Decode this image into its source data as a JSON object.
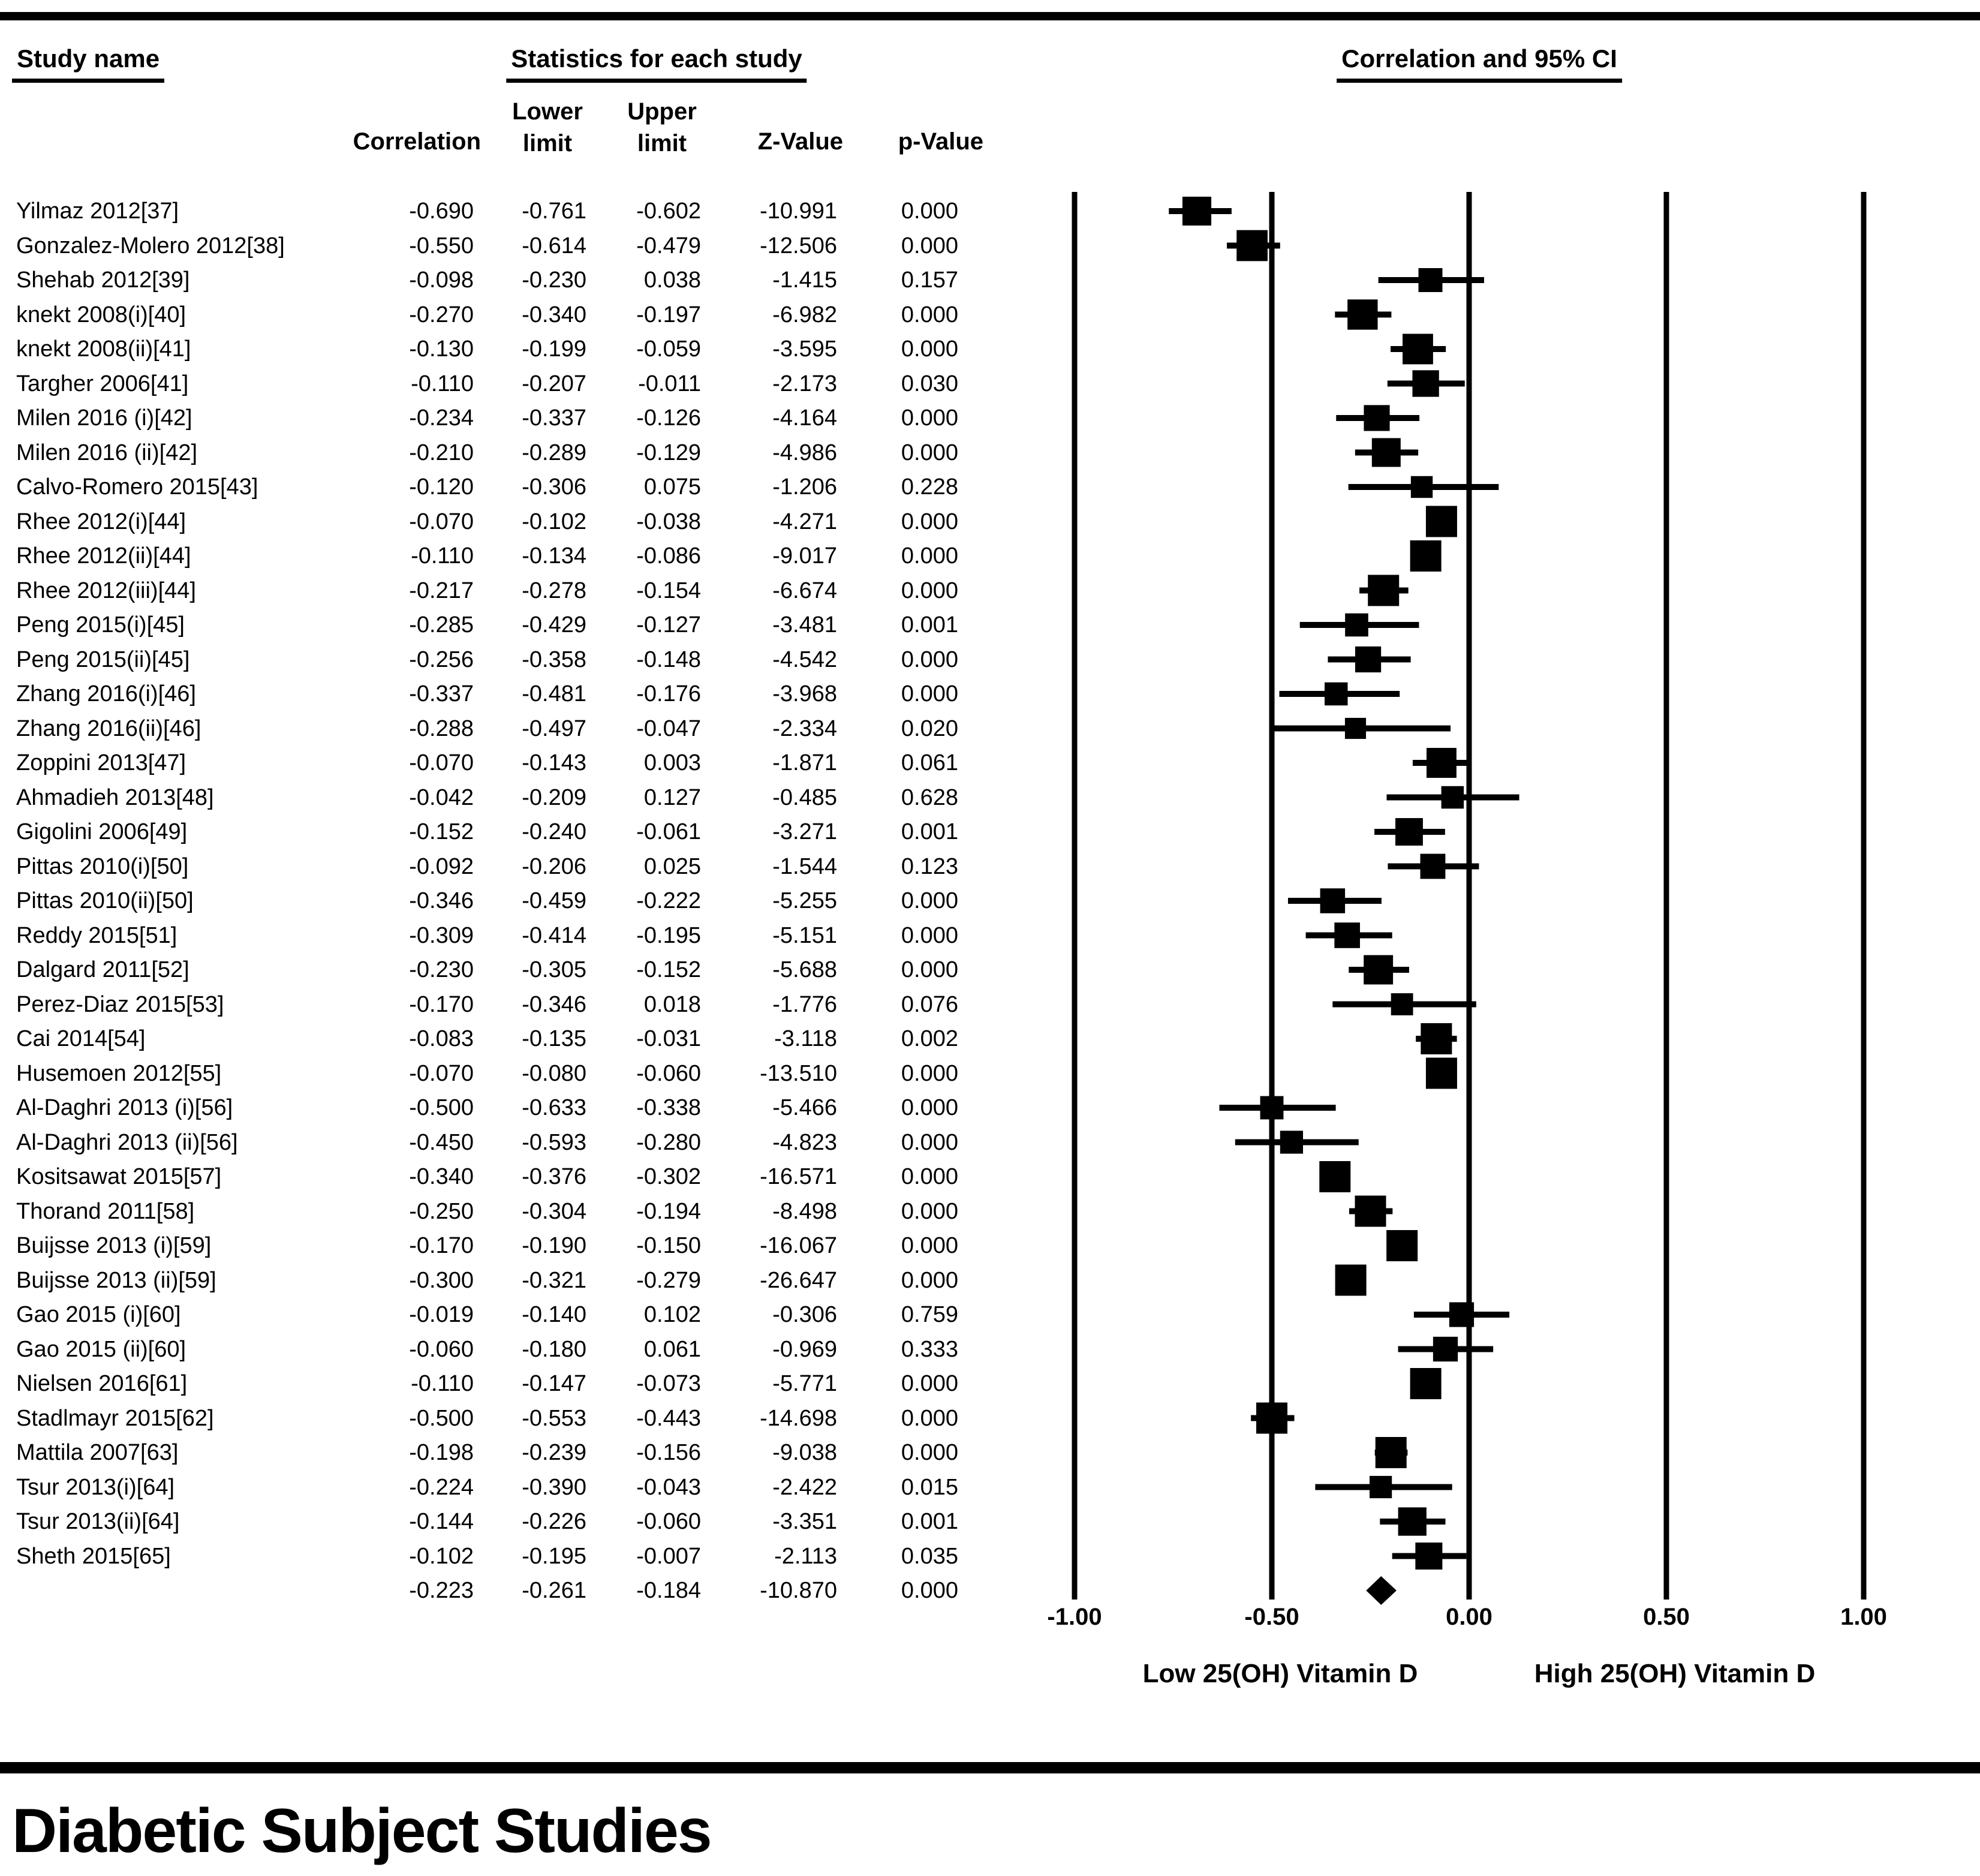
{
  "colors": {
    "foreground": "#000000",
    "background": "#ffffff"
  },
  "header": {
    "col_study": "Study name",
    "col_stats": "Statistics for each study",
    "col_plot": "Correlation and 95% CI"
  },
  "stat_columns": {
    "correlation": "Correlation",
    "lower_line1": "Lower",
    "lower_line2": "limit",
    "upper_line1": "Upper",
    "upper_line2": "limit",
    "z": "Z-Value",
    "p": "p-Value"
  },
  "axis": {
    "ticks": [
      "-1.00",
      "-0.50",
      "0.00",
      "0.50",
      "1.00"
    ],
    "tick_values": [
      -1,
      -0.5,
      0,
      0.5,
      1
    ],
    "left_label": "Low 25(OH) Vitamin D",
    "right_label": "High 25(OH) Vitamin D"
  },
  "footer": {
    "section_title": "Diabetic Subject Studies"
  },
  "chart_data": {
    "type": "forest",
    "title": "Correlation and 95% CI",
    "xlim": [
      -1,
      1
    ],
    "legend_position": "none",
    "grid": "vertical-lines-at-ticks",
    "studies": [
      {
        "name": "Yilmaz 2012[37]",
        "correlation": -0.69,
        "lower": -0.761,
        "upper": -0.602,
        "z": -10.991,
        "p": 0.0
      },
      {
        "name": "Gonzalez-Molero 2012[38]",
        "correlation": -0.55,
        "lower": -0.614,
        "upper": -0.479,
        "z": -12.506,
        "p": 0.0
      },
      {
        "name": "Shehab 2012[39]",
        "correlation": -0.098,
        "lower": -0.23,
        "upper": 0.038,
        "z": -1.415,
        "p": 0.157
      },
      {
        "name": "knekt 2008(i)[40]",
        "correlation": -0.27,
        "lower": -0.34,
        "upper": -0.197,
        "z": -6.982,
        "p": 0.0
      },
      {
        "name": "knekt 2008(ii)[41]",
        "correlation": -0.13,
        "lower": -0.199,
        "upper": -0.059,
        "z": -3.595,
        "p": 0.0
      },
      {
        "name": "Targher 2006[41]",
        "correlation": -0.11,
        "lower": -0.207,
        "upper": -0.011,
        "z": -2.173,
        "p": 0.03
      },
      {
        "name": "Milen 2016 (i)[42]",
        "correlation": -0.234,
        "lower": -0.337,
        "upper": -0.126,
        "z": -4.164,
        "p": 0.0
      },
      {
        "name": "Milen 2016 (ii)[42]",
        "correlation": -0.21,
        "lower": -0.289,
        "upper": -0.129,
        "z": -4.986,
        "p": 0.0
      },
      {
        "name": "Calvo-Romero 2015[43]",
        "correlation": -0.12,
        "lower": -0.306,
        "upper": 0.075,
        "z": -1.206,
        "p": 0.228
      },
      {
        "name": "Rhee 2012(i)[44]",
        "correlation": -0.07,
        "lower": -0.102,
        "upper": -0.038,
        "z": -4.271,
        "p": 0.0
      },
      {
        "name": "Rhee 2012(ii)[44]",
        "correlation": -0.11,
        "lower": -0.134,
        "upper": -0.086,
        "z": -9.017,
        "p": 0.0
      },
      {
        "name": "Rhee 2012(iii)[44]",
        "correlation": -0.217,
        "lower": -0.278,
        "upper": -0.154,
        "z": -6.674,
        "p": 0.0
      },
      {
        "name": "Peng 2015(i)[45]",
        "correlation": -0.285,
        "lower": -0.429,
        "upper": -0.127,
        "z": -3.481,
        "p": 0.001
      },
      {
        "name": "Peng 2015(ii)[45]",
        "correlation": -0.256,
        "lower": -0.358,
        "upper": -0.148,
        "z": -4.542,
        "p": 0.0
      },
      {
        "name": "Zhang 2016(i)[46]",
        "correlation": -0.337,
        "lower": -0.481,
        "upper": -0.176,
        "z": -3.968,
        "p": 0.0
      },
      {
        "name": "Zhang 2016(ii)[46]",
        "correlation": -0.288,
        "lower": -0.497,
        "upper": -0.047,
        "z": -2.334,
        "p": 0.02
      },
      {
        "name": "Zoppini 2013[47]",
        "correlation": -0.07,
        "lower": -0.143,
        "upper": 0.003,
        "z": -1.871,
        "p": 0.061
      },
      {
        "name": "Ahmadieh 2013[48]",
        "correlation": -0.042,
        "lower": -0.209,
        "upper": 0.127,
        "z": -0.485,
        "p": 0.628
      },
      {
        "name": "Gigolini 2006[49]",
        "correlation": -0.152,
        "lower": -0.24,
        "upper": -0.061,
        "z": -3.271,
        "p": 0.001
      },
      {
        "name": "Pittas 2010(i)[50]",
        "correlation": -0.092,
        "lower": -0.206,
        "upper": 0.025,
        "z": -1.544,
        "p": 0.123
      },
      {
        "name": "Pittas 2010(ii)[50]",
        "correlation": -0.346,
        "lower": -0.459,
        "upper": -0.222,
        "z": -5.255,
        "p": 0.0
      },
      {
        "name": "Reddy 2015[51]",
        "correlation": -0.309,
        "lower": -0.414,
        "upper": -0.195,
        "z": -5.151,
        "p": 0.0
      },
      {
        "name": "Dalgard 2011[52]",
        "correlation": -0.23,
        "lower": -0.305,
        "upper": -0.152,
        "z": -5.688,
        "p": 0.0
      },
      {
        "name": "Perez-Diaz 2015[53]",
        "correlation": -0.17,
        "lower": -0.346,
        "upper": 0.018,
        "z": -1.776,
        "p": 0.076
      },
      {
        "name": "Cai 2014[54]",
        "correlation": -0.083,
        "lower": -0.135,
        "upper": -0.031,
        "z": -3.118,
        "p": 0.002
      },
      {
        "name": "Husemoen 2012[55]",
        "correlation": -0.07,
        "lower": -0.08,
        "upper": -0.06,
        "z": -13.51,
        "p": 0.0
      },
      {
        "name": "Al-Daghri 2013 (i)[56]",
        "correlation": -0.5,
        "lower": -0.633,
        "upper": -0.338,
        "z": -5.466,
        "p": 0.0
      },
      {
        "name": "Al-Daghri 2013 (ii)[56]",
        "correlation": -0.45,
        "lower": -0.593,
        "upper": -0.28,
        "z": -4.823,
        "p": 0.0
      },
      {
        "name": "Kositsawat 2015[57]",
        "correlation": -0.34,
        "lower": -0.376,
        "upper": -0.302,
        "z": -16.571,
        "p": 0.0
      },
      {
        "name": "Thorand 2011[58]",
        "correlation": -0.25,
        "lower": -0.304,
        "upper": -0.194,
        "z": -8.498,
        "p": 0.0
      },
      {
        "name": "Buijsse 2013 (i)[59]",
        "correlation": -0.17,
        "lower": -0.19,
        "upper": -0.15,
        "z": -16.067,
        "p": 0.0
      },
      {
        "name": "Buijsse 2013 (ii)[59]",
        "correlation": -0.3,
        "lower": -0.321,
        "upper": -0.279,
        "z": -26.647,
        "p": 0.0
      },
      {
        "name": "Gao 2015 (i)[60]",
        "correlation": -0.019,
        "lower": -0.14,
        "upper": 0.102,
        "z": -0.306,
        "p": 0.759
      },
      {
        "name": "Gao 2015 (ii)[60]",
        "correlation": -0.06,
        "lower": -0.18,
        "upper": 0.061,
        "z": -0.969,
        "p": 0.333
      },
      {
        "name": "Nielsen 2016[61]",
        "correlation": -0.11,
        "lower": -0.147,
        "upper": -0.073,
        "z": -5.771,
        "p": 0.0
      },
      {
        "name": "Stadlmayr 2015[62]",
        "correlation": -0.5,
        "lower": -0.553,
        "upper": -0.443,
        "z": -14.698,
        "p": 0.0
      },
      {
        "name": "Mattila 2007[63]",
        "correlation": -0.198,
        "lower": -0.239,
        "upper": -0.156,
        "z": -9.038,
        "p": 0.0
      },
      {
        "name": "Tsur 2013(i)[64]",
        "correlation": -0.224,
        "lower": -0.39,
        "upper": -0.043,
        "z": -2.422,
        "p": 0.015
      },
      {
        "name": "Tsur 2013(ii)[64]",
        "correlation": -0.144,
        "lower": -0.226,
        "upper": -0.06,
        "z": -3.351,
        "p": 0.001
      },
      {
        "name": "Sheth 2015[65]",
        "correlation": -0.102,
        "lower": -0.195,
        "upper": -0.007,
        "z": -2.113,
        "p": 0.035
      }
    ],
    "summary": {
      "correlation": -0.223,
      "lower": -0.261,
      "upper": -0.184,
      "z": -10.87,
      "p": 0.0
    }
  }
}
